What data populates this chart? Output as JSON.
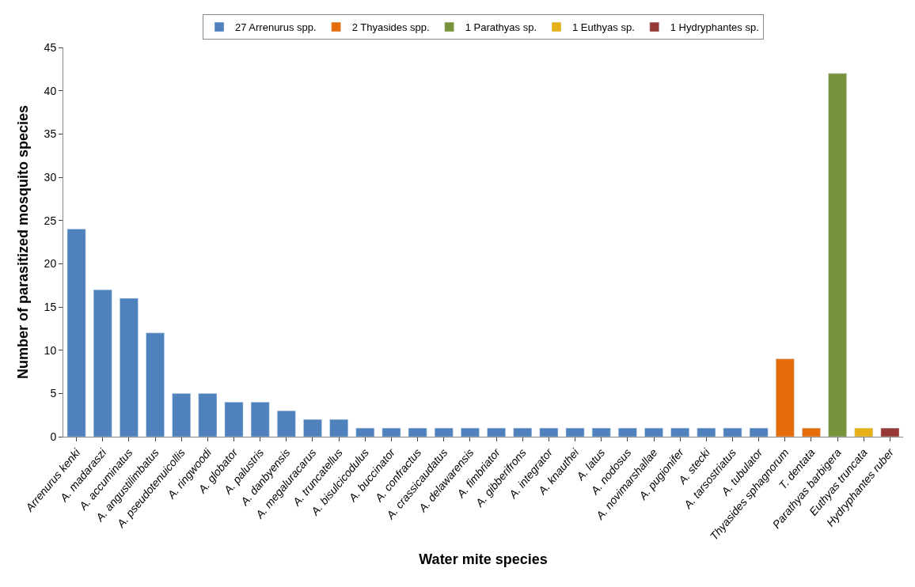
{
  "chart_data": {
    "type": "bar",
    "xlabel": "Water mite species",
    "ylabel": "Number of parasitized mosquito species",
    "categories": [
      "Arrenurus kenki",
      "A. madaraszi",
      "A. accuminatus",
      "A. angustilimbatus",
      "A. pseudotenuicollis",
      "A. ringwoodi",
      "A. globator",
      "A. palustris",
      "A. danbyensis",
      "A. megaluracarus",
      "A. truncatellus",
      "A. bisulcicodulus",
      "A. buccinator",
      "A. confractus",
      "A. crassicaudatus",
      "A. delawarensis",
      "A. fimbriator",
      "A. gibberifrons",
      "A. integrator",
      "A. knauthei",
      "A. latus",
      "A. nodosus",
      "A. novimarshallae",
      "A. pugionifer",
      "A. stecki",
      "A. tarsostriatus",
      "A. tubulator",
      "Thyasides sphagnorum",
      "T. dentata",
      "Parathyas barbigera",
      "Euthyas truncata",
      "Hydryphantes ruber"
    ],
    "series": [
      {
        "name": "27 Arrenurus spp.",
        "color": "#4f81bd",
        "values": [
          24,
          17,
          16,
          12,
          5,
          5,
          4,
          4,
          3,
          2,
          2,
          1,
          1,
          1,
          1,
          1,
          1,
          1,
          1,
          1,
          1,
          1,
          1,
          1,
          1,
          1,
          1,
          null,
          null,
          null,
          null,
          null
        ]
      },
      {
        "name": "2 Thyasides spp.",
        "color": "#e46c0a",
        "values": [
          null,
          null,
          null,
          null,
          null,
          null,
          null,
          null,
          null,
          null,
          null,
          null,
          null,
          null,
          null,
          null,
          null,
          null,
          null,
          null,
          null,
          null,
          null,
          null,
          null,
          null,
          null,
          9,
          1,
          null,
          null,
          null
        ]
      },
      {
        "name": "1 Parathyas sp.",
        "color": "#77933c",
        "values": [
          null,
          null,
          null,
          null,
          null,
          null,
          null,
          null,
          null,
          null,
          null,
          null,
          null,
          null,
          null,
          null,
          null,
          null,
          null,
          null,
          null,
          null,
          null,
          null,
          null,
          null,
          null,
          null,
          null,
          42,
          null,
          null
        ]
      },
      {
        "name": "1 Euthyas sp.",
        "color": "#e6b118",
        "values": [
          null,
          null,
          null,
          null,
          null,
          null,
          null,
          null,
          null,
          null,
          null,
          null,
          null,
          null,
          null,
          null,
          null,
          null,
          null,
          null,
          null,
          null,
          null,
          null,
          null,
          null,
          null,
          null,
          null,
          null,
          1,
          null
        ]
      },
      {
        "name": "1 Hydryphantes sp.",
        "color": "#953735",
        "values": [
          null,
          null,
          null,
          null,
          null,
          null,
          null,
          null,
          null,
          null,
          null,
          null,
          null,
          null,
          null,
          null,
          null,
          null,
          null,
          null,
          null,
          null,
          null,
          null,
          null,
          null,
          null,
          null,
          null,
          null,
          null,
          1
        ]
      }
    ],
    "ylim": [
      0,
      45
    ],
    "yticks": [
      0,
      5,
      10,
      15,
      20,
      25,
      30,
      35,
      40,
      45
    ],
    "legend": "top"
  }
}
